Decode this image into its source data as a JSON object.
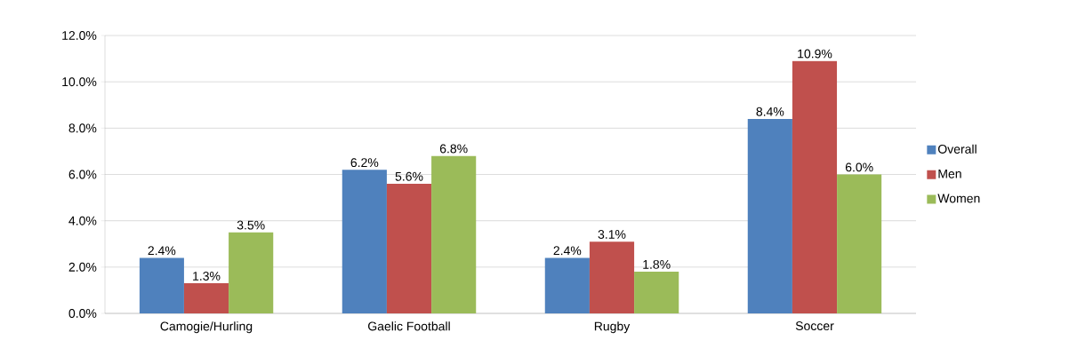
{
  "chart_data": {
    "type": "bar",
    "categories": [
      "Camogie/Hurling",
      "Gaelic Football",
      "Rugby",
      "Soccer"
    ],
    "series": [
      {
        "name": "Overall",
        "color": "#4f81bd",
        "values": [
          2.4,
          6.2,
          2.4,
          8.4
        ],
        "value_labels": [
          "2.4%",
          "6.2%",
          "2.4%",
          "8.4%"
        ]
      },
      {
        "name": "Men",
        "color": "#c0504d",
        "values": [
          1.3,
          5.6,
          3.1,
          10.9
        ],
        "value_labels": [
          "1.3%",
          "5.6%",
          "3.1%",
          "10.9%"
        ]
      },
      {
        "name": "Women",
        "color": "#9bbb59",
        "values": [
          3.5,
          6.8,
          1.8,
          6.0
        ],
        "value_labels": [
          "3.5%",
          "6.8%",
          "1.8%",
          "6.0%"
        ]
      }
    ],
    "ylim": [
      0,
      12
    ],
    "yticks": [
      {
        "value": 0,
        "label": "0.0%"
      },
      {
        "value": 2,
        "label": "2.0%"
      },
      {
        "value": 4,
        "label": "4.0%"
      },
      {
        "value": 6,
        "label": "6.0%"
      },
      {
        "value": 8,
        "label": "8.0%"
      },
      {
        "value": 10,
        "label": "10.0%"
      },
      {
        "value": 12,
        "label": "12.0%"
      }
    ],
    "grid": "y",
    "legend": "right"
  }
}
